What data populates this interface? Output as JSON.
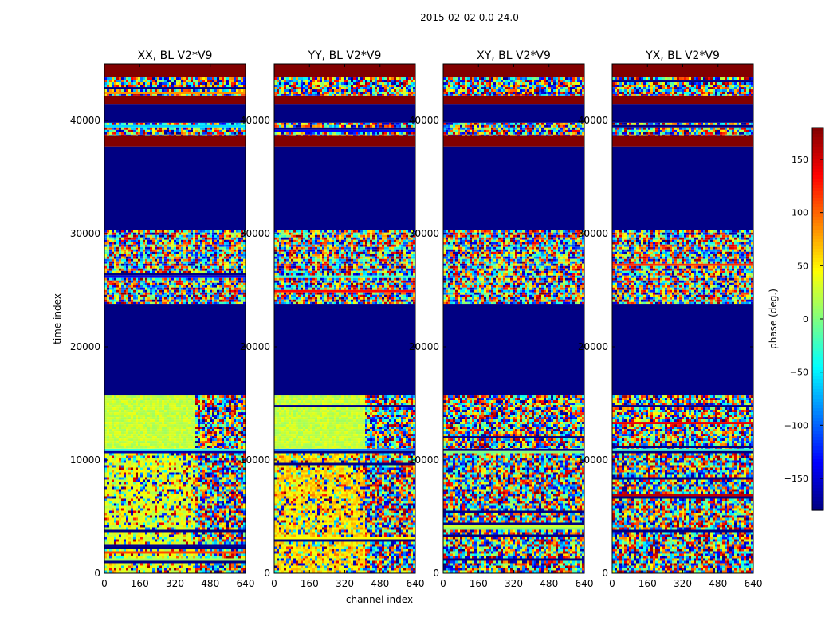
{
  "chart_data": {
    "type": "heatmap",
    "title": "2015-02-02 0.0-24.0",
    "xlabel": "channel index",
    "ylabel": "time index",
    "xlim": [
      0,
      640
    ],
    "ylim": [
      0,
      45000
    ],
    "xticks": [
      "0",
      "160",
      "320",
      "480",
      "640"
    ],
    "xtick_values": [
      0,
      160,
      320,
      480,
      640
    ],
    "yticks": [
      "0",
      "10000",
      "20000",
      "30000",
      "40000"
    ],
    "ytick_values": [
      0,
      10000,
      20000,
      30000,
      40000
    ],
    "colorbar": {
      "label": "phase (deg.)",
      "range": [
        -180,
        180
      ],
      "ticks": [
        "150",
        "100",
        "50",
        "0",
        "−50",
        "−100",
        "−150"
      ],
      "tick_values": [
        150,
        100,
        50,
        0,
        -50,
        -100,
        -150
      ],
      "colormap": "jet"
    },
    "panels": [
      {
        "title": "XX, BL V2*V9",
        "bands": [
          {
            "from": 0,
            "to": 10600,
            "fill": "noisy-green"
          },
          {
            "from": 10600,
            "to": 11000,
            "fill": "striped"
          },
          {
            "from": 11000,
            "to": 15700,
            "fill": "green-yellow"
          },
          {
            "from": 15700,
            "to": 23800,
            "fill": -179
          },
          {
            "from": 23800,
            "to": 30300,
            "fill": "noisy"
          },
          {
            "from": 30300,
            "to": 37700,
            "fill": -179
          },
          {
            "from": 37700,
            "to": 38700,
            "fill": 179
          },
          {
            "from": 38700,
            "to": 39800,
            "fill": "noisy"
          },
          {
            "from": 39800,
            "to": 41400,
            "fill": -179
          },
          {
            "from": 41400,
            "to": 42200,
            "fill": 179
          },
          {
            "from": 42200,
            "to": 43800,
            "fill": "noisy"
          },
          {
            "from": 43800,
            "to": 45000,
            "fill": 179
          }
        ]
      },
      {
        "title": "YY, BL V2*V9",
        "bands": [
          {
            "from": 0,
            "to": 10600,
            "fill": "noisy-yellow"
          },
          {
            "from": 10600,
            "to": 11000,
            "fill": "striped"
          },
          {
            "from": 11000,
            "to": 15700,
            "fill": "green-yellow"
          },
          {
            "from": 15700,
            "to": 23800,
            "fill": -179
          },
          {
            "from": 23800,
            "to": 30300,
            "fill": "noisy"
          },
          {
            "from": 30300,
            "to": 37700,
            "fill": -179
          },
          {
            "from": 37700,
            "to": 38700,
            "fill": 179
          },
          {
            "from": 38700,
            "to": 39800,
            "fill": "noisy"
          },
          {
            "from": 39800,
            "to": 41400,
            "fill": -179
          },
          {
            "from": 41400,
            "to": 42200,
            "fill": 179
          },
          {
            "from": 42200,
            "to": 43800,
            "fill": "noisy"
          },
          {
            "from": 43800,
            "to": 45000,
            "fill": 179
          }
        ]
      },
      {
        "title": "XY, BL V2*V9",
        "bands": [
          {
            "from": 0,
            "to": 10600,
            "fill": "noisy"
          },
          {
            "from": 10600,
            "to": 11000,
            "fill": "striped"
          },
          {
            "from": 11000,
            "to": 15700,
            "fill": "noisy"
          },
          {
            "from": 15700,
            "to": 23800,
            "fill": -179
          },
          {
            "from": 23800,
            "to": 30300,
            "fill": "noisy"
          },
          {
            "from": 30300,
            "to": 37700,
            "fill": -179
          },
          {
            "from": 37700,
            "to": 38700,
            "fill": 179
          },
          {
            "from": 38700,
            "to": 39800,
            "fill": "noisy"
          },
          {
            "from": 39800,
            "to": 41400,
            "fill": -179
          },
          {
            "from": 41400,
            "to": 42200,
            "fill": 179
          },
          {
            "from": 42200,
            "to": 43800,
            "fill": "noisy"
          },
          {
            "from": 43800,
            "to": 45000,
            "fill": 179
          }
        ]
      },
      {
        "title": "YX, BL V2*V9",
        "bands": [
          {
            "from": 0,
            "to": 10600,
            "fill": "noisy"
          },
          {
            "from": 10600,
            "to": 11000,
            "fill": "striped"
          },
          {
            "from": 11000,
            "to": 15700,
            "fill": "noisy"
          },
          {
            "from": 15700,
            "to": 23800,
            "fill": -179
          },
          {
            "from": 23800,
            "to": 30300,
            "fill": "noisy"
          },
          {
            "from": 30300,
            "to": 37700,
            "fill": -179
          },
          {
            "from": 37700,
            "to": 38700,
            "fill": 179
          },
          {
            "from": 38700,
            "to": 39800,
            "fill": "noisy"
          },
          {
            "from": 39800,
            "to": 41400,
            "fill": -179
          },
          {
            "from": 41400,
            "to": 42200,
            "fill": 179
          },
          {
            "from": 42200,
            "to": 43800,
            "fill": "noisy"
          },
          {
            "from": 43800,
            "to": 45000,
            "fill": 179
          }
        ]
      }
    ]
  }
}
